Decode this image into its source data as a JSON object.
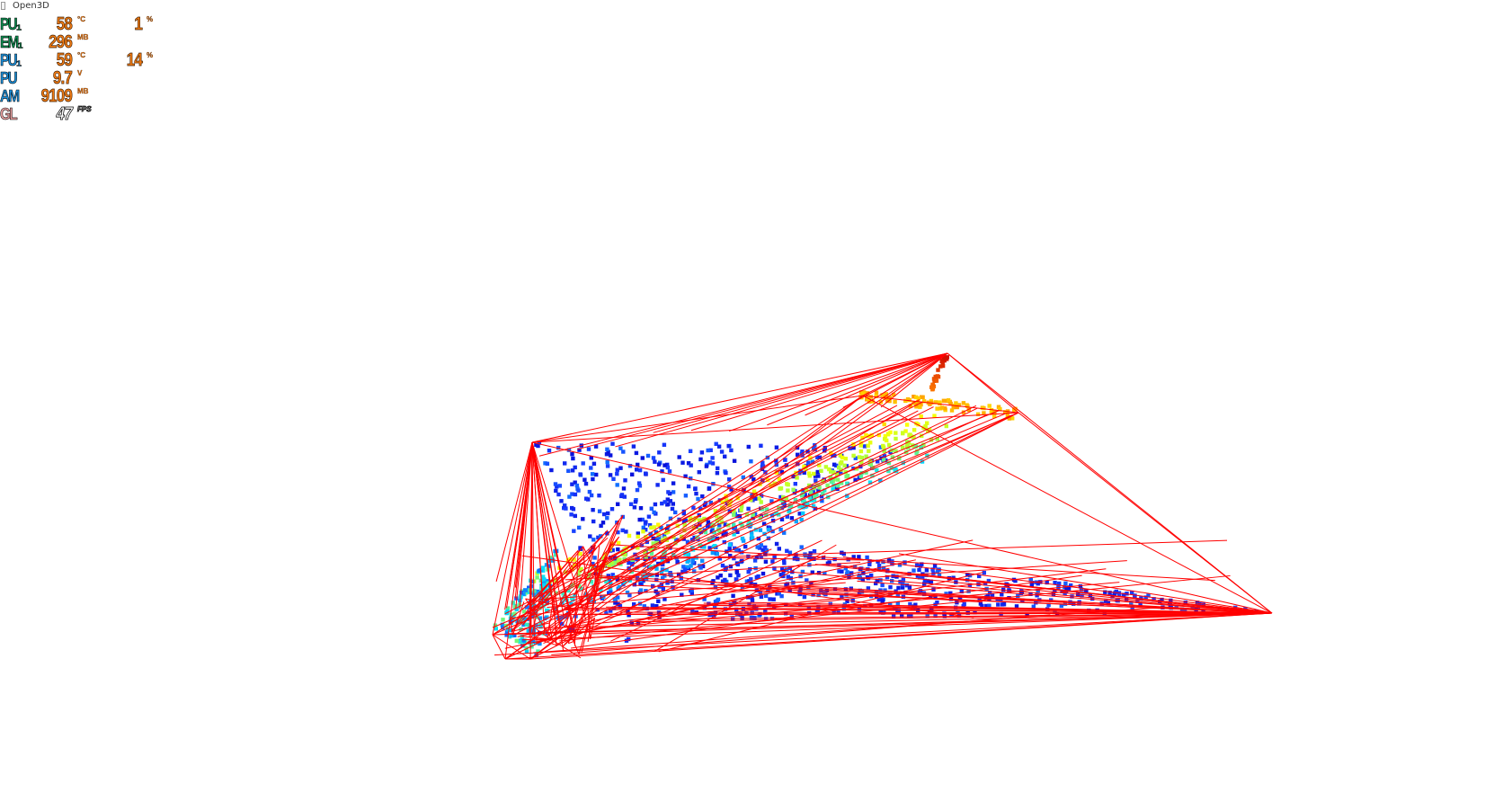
{
  "window": {
    "title": "Open3D"
  },
  "overlay": {
    "rows": [
      {
        "label": "PU₁",
        "label_color": "#0d8a4e",
        "value": "58",
        "unit": "°C",
        "value2": "1",
        "unit2": "%"
      },
      {
        "label": "EM₁",
        "label_color": "#0d8a4e",
        "value": "296",
        "unit": "MB",
        "value2": "",
        "unit2": ""
      },
      {
        "label": "PU₁",
        "label_color": "#1a8ed8",
        "value": "59",
        "unit": "°C",
        "value2": "14",
        "unit2": "%"
      },
      {
        "label": "PU",
        "label_color": "#1a8ed8",
        "value": "9.7",
        "unit": "V",
        "value2": "",
        "unit2": ""
      },
      {
        "label": "AM",
        "label_color": "#1a8ed8",
        "value": "9109",
        "unit": "MB",
        "value2": "",
        "unit2": ""
      },
      {
        "label": "GL",
        "label_color": "#e8a0a0",
        "value": "47",
        "unit": "FPS",
        "value2": "",
        "unit2": ""
      }
    ]
  },
  "scene": {
    "background": "#ffffff",
    "line_color": "#ff0000",
    "colormap": [
      "#0000cc",
      "#1a3cff",
      "#00e0ff",
      "#a8ff3a",
      "#ffff00",
      "#ff8000",
      "#cc0000"
    ]
  }
}
